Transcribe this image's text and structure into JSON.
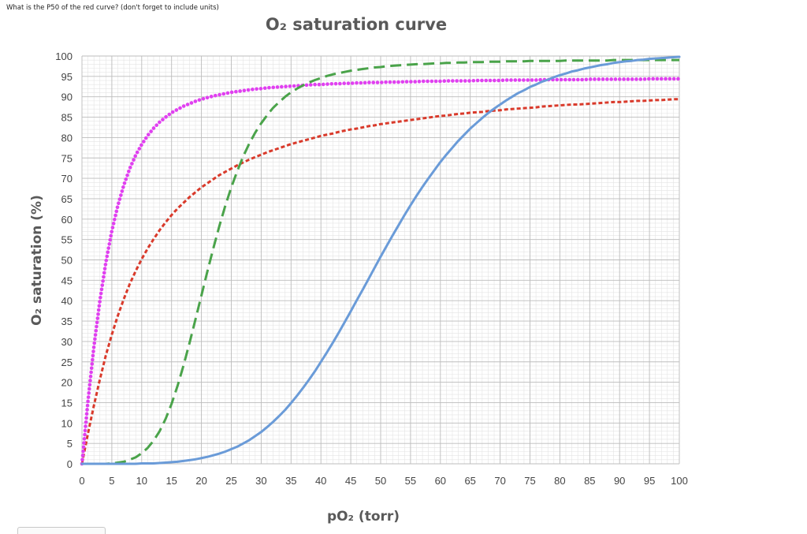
{
  "question": "What is the P50 of the red curve? (don't forget to include units)",
  "chart_data": {
    "type": "line",
    "title": "O₂ saturation curve",
    "xlabel": "pO₂ (torr)",
    "ylabel": "O₂ saturation (%)",
    "xlim": [
      0,
      100
    ],
    "ylim": [
      0,
      100
    ],
    "x_ticks": [
      0,
      5,
      10,
      15,
      20,
      25,
      30,
      35,
      40,
      45,
      50,
      55,
      60,
      65,
      70,
      75,
      80,
      85,
      90,
      95,
      100
    ],
    "y_ticks": [
      0,
      5,
      10,
      15,
      20,
      25,
      30,
      35,
      40,
      45,
      50,
      55,
      60,
      65,
      70,
      75,
      80,
      85,
      90,
      95,
      100
    ],
    "grid": true,
    "legend": "none",
    "x": [
      0,
      1,
      2,
      3,
      4,
      5,
      6,
      7,
      8,
      9,
      10,
      11,
      12,
      13,
      14,
      15,
      16,
      17,
      18,
      19,
      20,
      21,
      22,
      23,
      24,
      25,
      26,
      27,
      28,
      29,
      30,
      31,
      32,
      33,
      34,
      35,
      36,
      37,
      38,
      39,
      40,
      41,
      42,
      43,
      44,
      45,
      46,
      47,
      48,
      49,
      50,
      51,
      52,
      53,
      54,
      55,
      56,
      57,
      58,
      59,
      60,
      61,
      62,
      63,
      64,
      65,
      66,
      67,
      68,
      69,
      70,
      71,
      72,
      73,
      74,
      75,
      76,
      77,
      78,
      79,
      80,
      81,
      82,
      83,
      84,
      85,
      86,
      87,
      88,
      89,
      90,
      91,
      92,
      93,
      94,
      95,
      96,
      97,
      98,
      99,
      100
    ],
    "series": [
      {
        "color": "#d93a2b",
        "dash": "dashed",
        "values": [
          0,
          7.4,
          14.3,
          20.7,
          26.6,
          31.7,
          36.3,
          40.4,
          44.1,
          47.3,
          50.2,
          52.8,
          55.1,
          57.3,
          59.2,
          61,
          62.6,
          64,
          65.4,
          66.6,
          67.8,
          68.8,
          69.8,
          70.8,
          71.6,
          72.4,
          73.2,
          73.9,
          74.6,
          75.2,
          75.8,
          76.4,
          76.9,
          77.4,
          77.9,
          78.4,
          78.8,
          79.2,
          79.6,
          80,
          80.4,
          80.7,
          81,
          81.4,
          81.7,
          82,
          82.2,
          82.5,
          82.8,
          83,
          83.3,
          83.5,
          83.7,
          83.9,
          84.1,
          84.3,
          84.5,
          84.7,
          84.9,
          85.1,
          85.3,
          85.4,
          85.6,
          85.8,
          85.9,
          86.1,
          86.2,
          86.3,
          86.5,
          86.6,
          86.7,
          86.9,
          87,
          87.1,
          87.2,
          87.3,
          87.4,
          87.6,
          87.7,
          87.8,
          87.9,
          88,
          88.1,
          88.1,
          88.2,
          88.3,
          88.4,
          88.5,
          88.6,
          88.7,
          88.7,
          88.8,
          88.9,
          89,
          89,
          89.1,
          89.2,
          89.2,
          89.3,
          89.4,
          89.4
        ]
      },
      {
        "color": "#e040f0",
        "dash": "dotted",
        "values": [
          0,
          15.3,
          28.7,
          40,
          49.4,
          57.1,
          63.3,
          68.3,
          72.4,
          75.7,
          78.3,
          80.5,
          82.3,
          83.8,
          85,
          86.1,
          86.9,
          87.7,
          88.3,
          88.9,
          89.4,
          89.8,
          90.2,
          90.5,
          90.8,
          91.1,
          91.3,
          91.5,
          91.7,
          91.9,
          92,
          92.2,
          92.3,
          92.4,
          92.5,
          92.6,
          92.7,
          92.8,
          92.9,
          93,
          93,
          93.1,
          93.2,
          93.2,
          93.3,
          93.3,
          93.4,
          93.4,
          93.5,
          93.5,
          93.5,
          93.6,
          93.6,
          93.6,
          93.7,
          93.7,
          93.7,
          93.8,
          93.8,
          93.8,
          93.8,
          93.9,
          93.9,
          93.9,
          93.9,
          93.9,
          94,
          94,
          94,
          94,
          94,
          94.1,
          94.1,
          94.1,
          94.1,
          94.1,
          94.1,
          94.2,
          94.2,
          94.2,
          94.2,
          94.2,
          94.2,
          94.2,
          94.2,
          94.3,
          94.3,
          94.3,
          94.3,
          94.3,
          94.3,
          94.3,
          94.3,
          94.3,
          94.3,
          94.4,
          94.4,
          94.4,
          94.4,
          94.4,
          94.4
        ]
      },
      {
        "color": "#4aa34a",
        "dash": "long-dashed",
        "values": [
          0,
          0,
          0,
          0,
          0,
          0.1,
          0.3,
          0.5,
          1,
          1.6,
          2.6,
          3.9,
          5.7,
          8,
          11,
          14.7,
          19.1,
          24.1,
          29.6,
          35.4,
          41.3,
          47.2,
          52.9,
          58.3,
          63.3,
          67.8,
          71.8,
          75.4,
          78.5,
          81.2,
          83.5,
          85.5,
          87.3,
          88.7,
          90,
          91.1,
          92,
          92.8,
          93.5,
          94.1,
          94.6,
          95.1,
          95.5,
          95.8,
          96.1,
          96.4,
          96.6,
          96.8,
          97,
          97.2,
          97.3,
          97.5,
          97.6,
          97.7,
          97.8,
          97.9,
          98,
          98,
          98.1,
          98.2,
          98.2,
          98.3,
          98.3,
          98.4,
          98.4,
          98.5,
          98.5,
          98.5,
          98.6,
          98.6,
          98.6,
          98.7,
          98.7,
          98.7,
          98.7,
          98.8,
          98.8,
          98.8,
          98.8,
          98.8,
          98.8,
          98.9,
          98.9,
          98.9,
          98.9,
          98.9,
          98.9,
          98.9,
          98.9,
          99,
          99,
          99,
          99,
          99,
          99,
          99,
          99,
          99,
          99,
          99,
          99
        ]
      },
      {
        "color": "#6a9bd8",
        "dash": "solid",
        "values": [
          0,
          0,
          0,
          0,
          0,
          0,
          0,
          0,
          0,
          0,
          0.1,
          0.1,
          0.1,
          0.2,
          0.3,
          0.4,
          0.5,
          0.7,
          0.9,
          1.1,
          1.4,
          1.7,
          2.1,
          2.5,
          3,
          3.6,
          4.2,
          5,
          5.8,
          6.8,
          7.8,
          9,
          10.3,
          11.7,
          13.2,
          14.9,
          16.7,
          18.6,
          20.6,
          22.7,
          25,
          27.3,
          29.7,
          32.2,
          34.8,
          37.4,
          40.1,
          42.7,
          45.4,
          48.1,
          50.8,
          53.4,
          56,
          58.5,
          61,
          63.4,
          65.7,
          67.9,
          70,
          72,
          74,
          75.8,
          77.5,
          79.2,
          80.7,
          82.2,
          83.5,
          84.8,
          86,
          87.1,
          88.1,
          89.1,
          90,
          90.9,
          91.6,
          92.4,
          93,
          93.7,
          94.2,
          94.8,
          95.3,
          95.7,
          96.2,
          96.5,
          96.9,
          97.2,
          97.5,
          97.8,
          98,
          98.3,
          98.5,
          98.7,
          98.8,
          99,
          99.1,
          99.3,
          99.4,
          99.5,
          99.6,
          99.7,
          99.8
        ]
      }
    ]
  }
}
